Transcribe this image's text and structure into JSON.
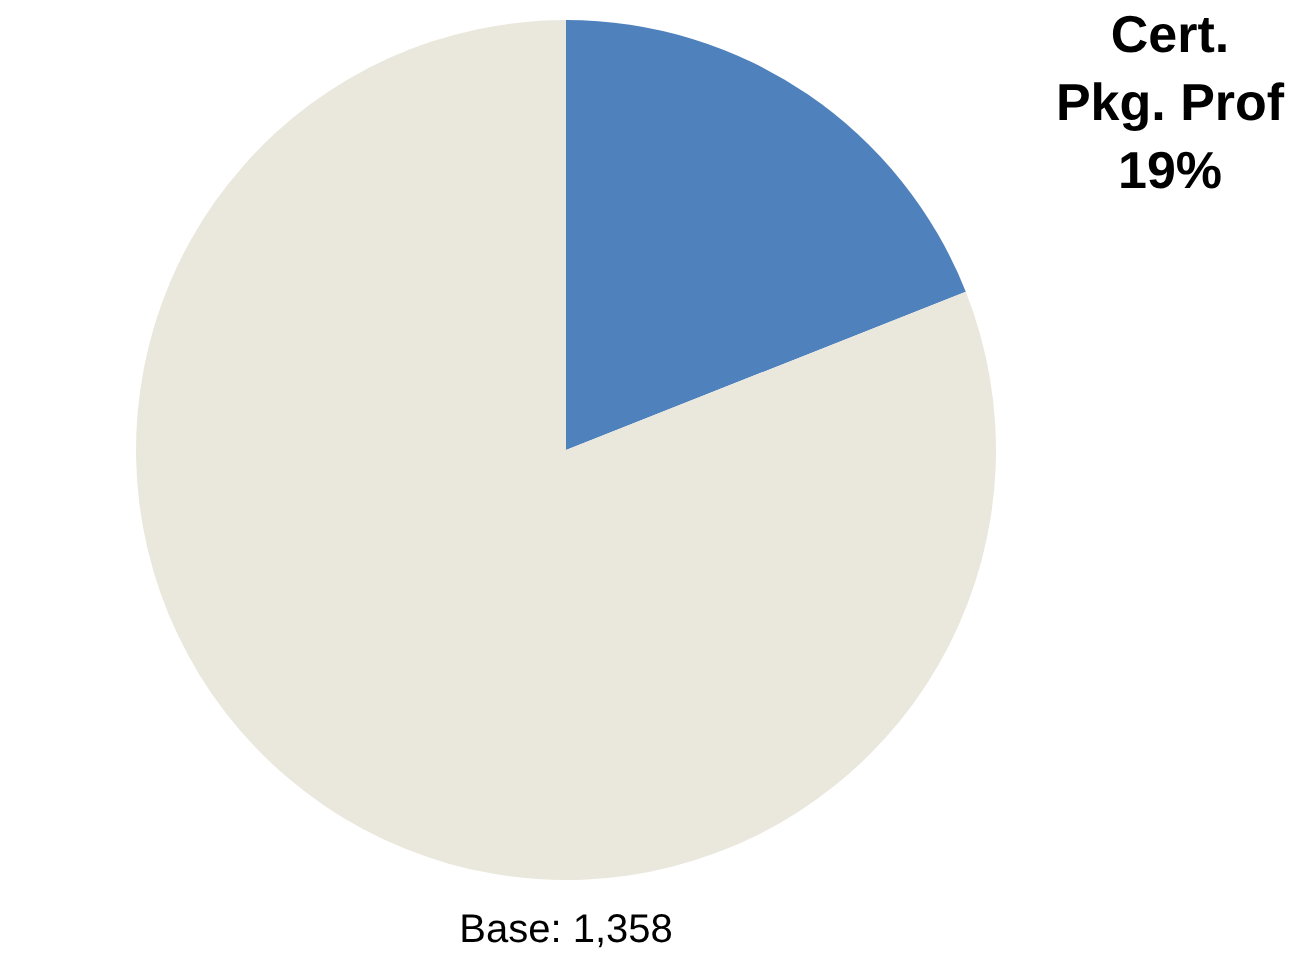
{
  "chart_data": {
    "type": "pie",
    "categories": [
      "Cert. Pkg. Prof",
      null
    ],
    "values": [
      19,
      81
    ],
    "colors": [
      "#4f81bd",
      "#eae8dd"
    ],
    "value_labels": [
      "19%",
      null
    ],
    "annotations": [
      "Base:  1,358"
    ]
  }
}
